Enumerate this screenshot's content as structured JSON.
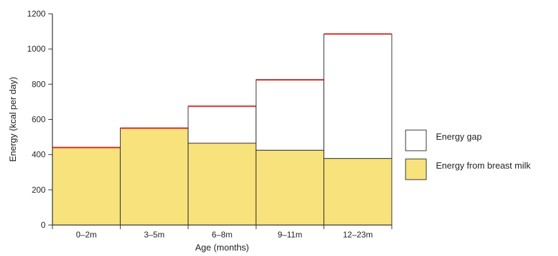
{
  "chart_data": {
    "type": "bar",
    "stacked": true,
    "categories": [
      "0–2m",
      "3–5m",
      "6–8m",
      "9–11m",
      "12–23m"
    ],
    "xlabel": "Age (months)",
    "ylabel": "Energy (kcal per day)",
    "ylim": [
      0,
      1200
    ],
    "yticks": [
      0,
      200,
      400,
      600,
      800,
      1000,
      1200
    ],
    "series": [
      {
        "name": "Energy from breast milk",
        "values": [
          440,
          550,
          465,
          425,
          378
        ],
        "color": "#f7e27c"
      },
      {
        "name": "Energy gap",
        "values": [
          0,
          0,
          210,
          400,
          707
        ],
        "color": "#ffffff"
      }
    ],
    "total_requirement": [
      440,
      550,
      675,
      825,
      1085
    ],
    "total_line_color": "#d42a2a",
    "legend": {
      "position": "right"
    },
    "grid": false
  }
}
